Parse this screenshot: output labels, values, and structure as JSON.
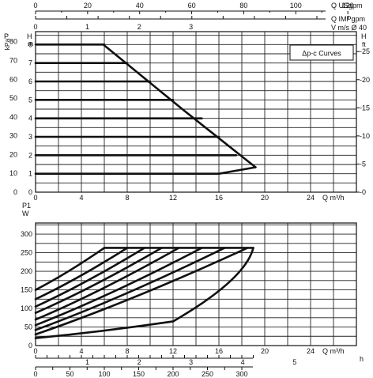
{
  "chart_data": [
    {
      "type": "line",
      "legend": "Δp-c Curves",
      "x_quantity_label": "Q m³/h",
      "x_ticks": [
        "0",
        "4",
        "8",
        "12",
        "16",
        "20",
        "24"
      ],
      "xlim": [
        0,
        28
      ],
      "y_left_label": "H m",
      "ylim_m": [
        0,
        8.7
      ],
      "y_m_ticks": [
        "0",
        "1",
        "2",
        "3",
        "4",
        "5",
        "6",
        "7",
        "8"
      ],
      "y_kpa_label": "P kPa",
      "y_kpa_ticks": [
        "0",
        "10",
        "20",
        "30",
        "40",
        "50",
        "60",
        "70",
        "80"
      ],
      "y_right_label": "H ft",
      "y_ft_ticks": [
        "0",
        "5",
        "10",
        "15",
        "20",
        "25"
      ],
      "grid": true,
      "series": [
        {
          "x": [
            0,
            6
          ],
          "y": [
            8,
            8
          ]
        },
        {
          "x": [
            0,
            8
          ],
          "y": [
            7,
            7
          ]
        },
        {
          "x": [
            0,
            10
          ],
          "y": [
            6,
            6
          ]
        },
        {
          "x": [
            0,
            12
          ],
          "y": [
            5,
            5
          ]
        },
        {
          "x": [
            0,
            14.5
          ],
          "y": [
            4,
            4
          ]
        },
        {
          "x": [
            0,
            16
          ],
          "y": [
            3,
            3
          ]
        },
        {
          "x": [
            0,
            17.5
          ],
          "y": [
            2,
            2
          ]
        },
        {
          "x": [
            0,
            16,
            19.2
          ],
          "y": [
            1,
            1,
            1.35
          ]
        },
        {
          "x": [
            5.9,
            13,
            19.2
          ],
          "y": [
            8,
            4.4,
            1.35
          ]
        }
      ],
      "top_axes": [
        {
          "label": "Q USgpm",
          "ticks": [
            "0",
            "20",
            "40",
            "60",
            "80",
            "100",
            "120"
          ]
        },
        {
          "label": "Q IMPgpm",
          "ticks": []
        },
        {
          "label": "V m/s Ø 40",
          "ticks": [
            "0",
            "1",
            "2",
            "3"
          ]
        }
      ]
    },
    {
      "type": "line",
      "x_quantity_label": "Q m³/h",
      "x_ticks": [
        "0",
        "4",
        "8",
        "12",
        "16",
        "20",
        "24"
      ],
      "xlim": [
        0,
        28
      ],
      "y_label": "P1 W",
      "y_ticks": [
        "0",
        "50",
        "100",
        "150",
        "200",
        "250",
        "300"
      ],
      "ylim": [
        0,
        330
      ],
      "grid": true,
      "series": [
        {
          "x": [
            0,
            6,
            12,
            19
          ],
          "y": [
            20,
            38,
            65,
            263
          ]
        },
        {
          "x": [
            0,
            6
          ],
          "y": [
            150,
            263
          ]
        },
        {
          "x": [
            0,
            8
          ],
          "y": [
            125,
            263
          ]
        },
        {
          "x": [
            0,
            9.5
          ],
          "y": [
            105,
            263
          ]
        },
        {
          "x": [
            0,
            11
          ],
          "y": [
            88,
            263
          ]
        },
        {
          "x": [
            0,
            12.5
          ],
          "y": [
            70,
            263
          ]
        },
        {
          "x": [
            0,
            14.5
          ],
          "y": [
            55,
            263
          ]
        },
        {
          "x": [
            0,
            16.5
          ],
          "y": [
            42,
            263
          ]
        },
        {
          "x": [
            0,
            18.5
          ],
          "y": [
            30,
            263
          ]
        },
        {
          "x": [
            6,
            19
          ],
          "y": [
            263,
            263
          ]
        }
      ],
      "bottom_axes": [
        {
          "label": "h",
          "ticks": [
            "1",
            "2",
            "3",
            "4",
            "5"
          ]
        },
        {
          "label": "",
          "ticks": [
            "0",
            "50",
            "100",
            "150",
            "200",
            "250",
            "300"
          ]
        }
      ]
    }
  ]
}
